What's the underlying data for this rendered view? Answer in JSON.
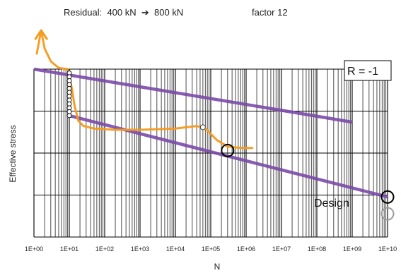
{
  "chart_data": {
    "type": "line",
    "xlabel": "N",
    "ylabel": "Effective stress",
    "x_scale": "log",
    "xlim": [
      1,
      10000000000
    ],
    "y_ticks_shown": false,
    "grid": true,
    "x_tick_labels": [
      "1E+00",
      "1E+01",
      "1E+02",
      "1E+03",
      "1E+04",
      "1E+05",
      "1E+06",
      "1E+07",
      "1E+08",
      "1E+09",
      "1E+10"
    ],
    "annotations": {
      "residual_prefix": "Residual:",
      "residual_from": "400 kN",
      "arrow": "➔",
      "residual_to": "800 kN",
      "factor": "factor 12",
      "ratio_box": "R = -1",
      "design": "Design"
    },
    "series": [
      {
        "color": "#7a4aa8",
        "x": [
          1,
          1000000000
        ],
        "y": [
          10.0,
          7.95
        ]
      },
      {
        "color": "#7a4aa8",
        "x": [
          10,
          10000000000
        ],
        "y": [
          8.2,
          5.05
        ]
      },
      {
        "color": "#f59a1b",
        "x": [
          1.2,
          1.6,
          2.0,
          3,
          5,
          9,
          12,
          14,
          18,
          25,
          50,
          200,
          1000,
          10000,
          40000,
          70000,
          150000,
          300000,
          700000,
          1500000
        ],
        "y": [
          10.6,
          11.5,
          10.8,
          10.3,
          10.05,
          10.0,
          9.2,
          8.6,
          8.0,
          7.8,
          7.7,
          7.65,
          7.65,
          7.7,
          7.8,
          7.7,
          7.25,
          7.0,
          6.95,
          6.95
        ]
      }
    ],
    "markers": {
      "test_points": {
        "x": 10,
        "y": [
          9.85,
          9.7,
          9.55,
          9.4,
          9.25,
          9.1,
          8.95,
          8.8,
          8.65,
          8.5,
          8.35,
          8.2
        ]
      },
      "open_circle_orange": {
        "x": 60000,
        "y": 7.75
      },
      "failure_circle": {
        "x": 300000,
        "y": 6.85
      },
      "design_circle_black": {
        "x": 10000000000,
        "y": 5.05
      },
      "design_circle_gray": {
        "x": 10000000000,
        "y": 4.4
      }
    },
    "colors": {
      "grid": "#000000",
      "purple": "#7a4aa8",
      "orange": "#f59a1b",
      "gray": "#9a9a9a"
    }
  }
}
